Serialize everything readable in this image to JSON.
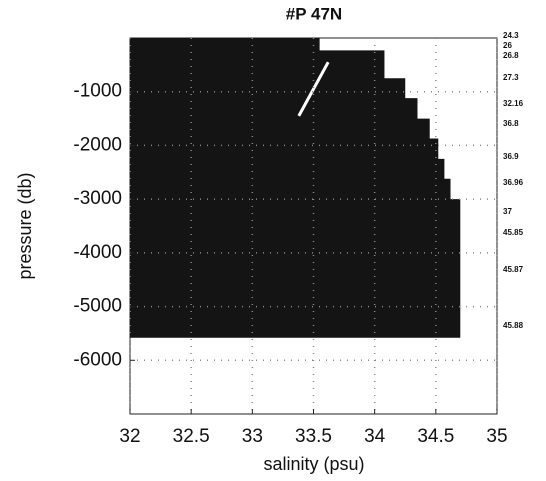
{
  "chart_data": {
    "type": "area",
    "title": "#P 47N",
    "x_label": "salinity (psu)",
    "y_label": "pressure (db)",
    "xlim": [
      32,
      35
    ],
    "xticks": [
      32,
      32.5,
      33,
      33.5,
      34,
      34.5,
      35
    ],
    "ylim": [
      -7000,
      0
    ],
    "yticks": [
      -6000,
      -5000,
      -4000,
      -3000,
      -2000,
      -1000
    ],
    "grid": true,
    "series": [
      {
        "color": "#141414",
        "x": [
          32,
          33.55,
          33.55,
          34.08,
          34.08,
          34.25,
          34.25,
          34.35,
          34.35,
          34.45,
          34.45,
          34.52,
          34.52,
          34.57,
          34.57,
          34.62,
          34.62,
          34.7,
          34.7,
          32
        ],
        "values": [
          0,
          0,
          -230,
          -230,
          -750,
          -750,
          -1120,
          -1120,
          -1500,
          -1500,
          -1870,
          -1870,
          -2250,
          -2250,
          -2620,
          -2620,
          -3000,
          -3000,
          -5580,
          -5580
        ]
      },
      {
        "color": "#ffffff",
        "x": [
          33.62,
          33.5,
          33.38
        ],
        "values": [
          -450,
          -950,
          -1450
        ]
      }
    ],
    "side_labels": [
      "24.3",
      "26",
      "26.8",
      "27.3",
      "32.16",
      "36.8",
      "36.9",
      "36.96",
      "37",
      "45.85",
      "45.87",
      "45.88"
    ]
  }
}
